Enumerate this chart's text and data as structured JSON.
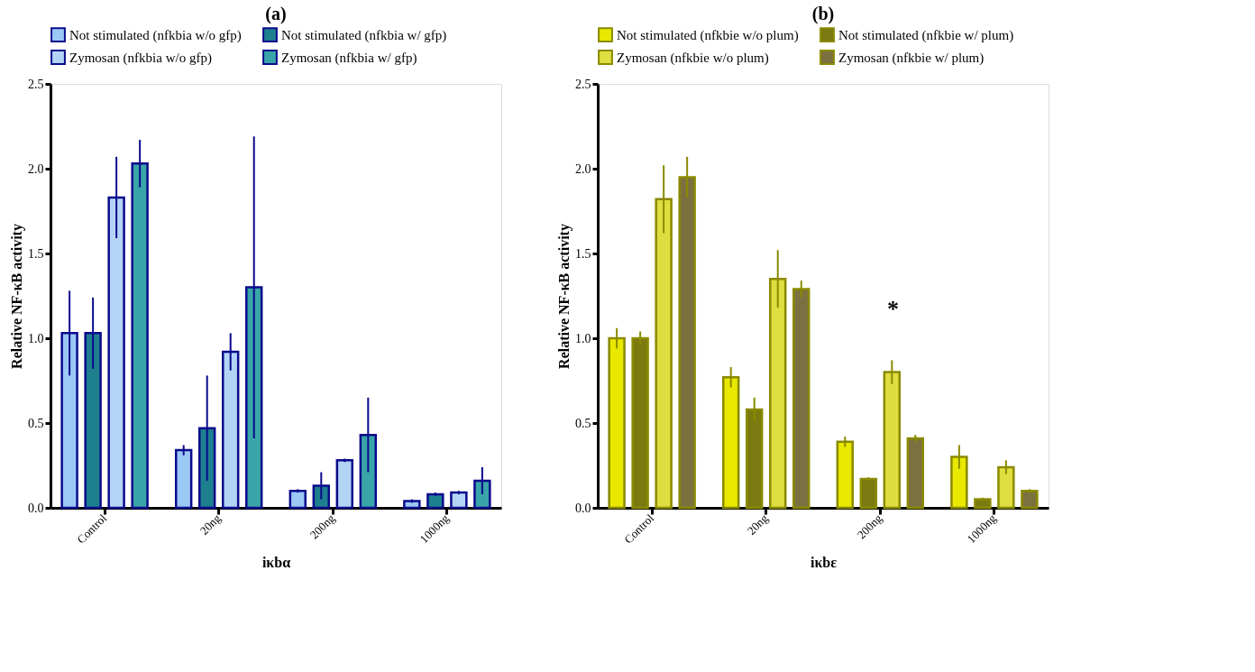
{
  "chart_data": [
    {
      "type": "bar",
      "title": "(a)",
      "xlabel": "iκbα",
      "ylabel": "Relative NF-κB activity",
      "categories": [
        "Control",
        "20ng",
        "200ng",
        "1000ng"
      ],
      "ylim": [
        0,
        2.5
      ],
      "yticks": [
        {
          "value": 0,
          "label": "0.0"
        },
        0.5,
        {
          "value": 1,
          "label": "1.0"
        },
        1.5,
        {
          "value": 2,
          "label": "2.0"
        },
        2.5
      ],
      "grid": false,
      "legend": "top",
      "series": [
        {
          "name": "Not stimulated (nfkbia w/o gfp)",
          "color": "#9cc8f5",
          "values": [
            1.03,
            0.34,
            0.1,
            0.04
          ],
          "errors": [
            0.25,
            0.03,
            0.01,
            0.01
          ]
        },
        {
          "name": "Not stimulated (nfkbia w/ gfp)",
          "color": "#1e7f8f",
          "values": [
            1.03,
            0.47,
            0.13,
            0.08
          ],
          "errors": [
            0.21,
            0.31,
            0.08,
            0.01
          ]
        },
        {
          "name": "Zymosan (nfkbia w/o gfp)",
          "color": "#b4d4f5",
          "values": [
            1.83,
            0.92,
            0.28,
            0.09
          ],
          "errors": [
            0.24,
            0.11,
            0.01,
            0.01
          ]
        },
        {
          "name": "Zymosan (nfkbia w/ gfp)",
          "color": "#3aa5a8",
          "values": [
            2.03,
            1.3,
            0.43,
            0.16
          ],
          "errors": [
            0.14,
            0.89,
            0.22,
            0.08
          ]
        }
      ]
    },
    {
      "type": "bar",
      "title": "(b)",
      "xlabel": "iκbε",
      "ylabel": "Relative NF-κB activity",
      "categories": [
        "Control",
        "20ng",
        "200ng",
        "1000ng"
      ],
      "ylim": [
        0,
        2.5
      ],
      "yticks": [
        {
          "value": 0,
          "label": "0.0"
        },
        0.5,
        {
          "value": 1,
          "label": "1.0"
        },
        1.5,
        {
          "value": 2,
          "label": "2.0"
        },
        2.5
      ],
      "grid": false,
      "legend": "top",
      "annotations": [
        "*"
      ],
      "series": [
        {
          "name": "Not stimulated (nfkbie w/o plum)",
          "color": "#e8e800",
          "values": [
            1.0,
            0.77,
            0.39,
            0.3
          ],
          "errors": [
            0.06,
            0.06,
            0.03,
            0.07
          ]
        },
        {
          "name": "Not stimulated (nfkbie w/ plum)",
          "color": "#7a7a10",
          "values": [
            1.0,
            0.58,
            0.17,
            0.05
          ],
          "errors": [
            0.04,
            0.07,
            0.01,
            0.01
          ]
        },
        {
          "name": "Zymosan (nfkbie w/o plum)",
          "color": "#dede40",
          "values": [
            1.82,
            1.35,
            0.8,
            0.24
          ],
          "errors": [
            0.2,
            0.17,
            0.07,
            0.04
          ]
        },
        {
          "name": "Zymosan (nfkbie w/ plum)",
          "color": "#7d7040",
          "values": [
            1.95,
            1.29,
            0.41,
            0.1
          ],
          "errors": [
            0.12,
            0.05,
            0.02,
            0.01
          ]
        }
      ]
    }
  ]
}
